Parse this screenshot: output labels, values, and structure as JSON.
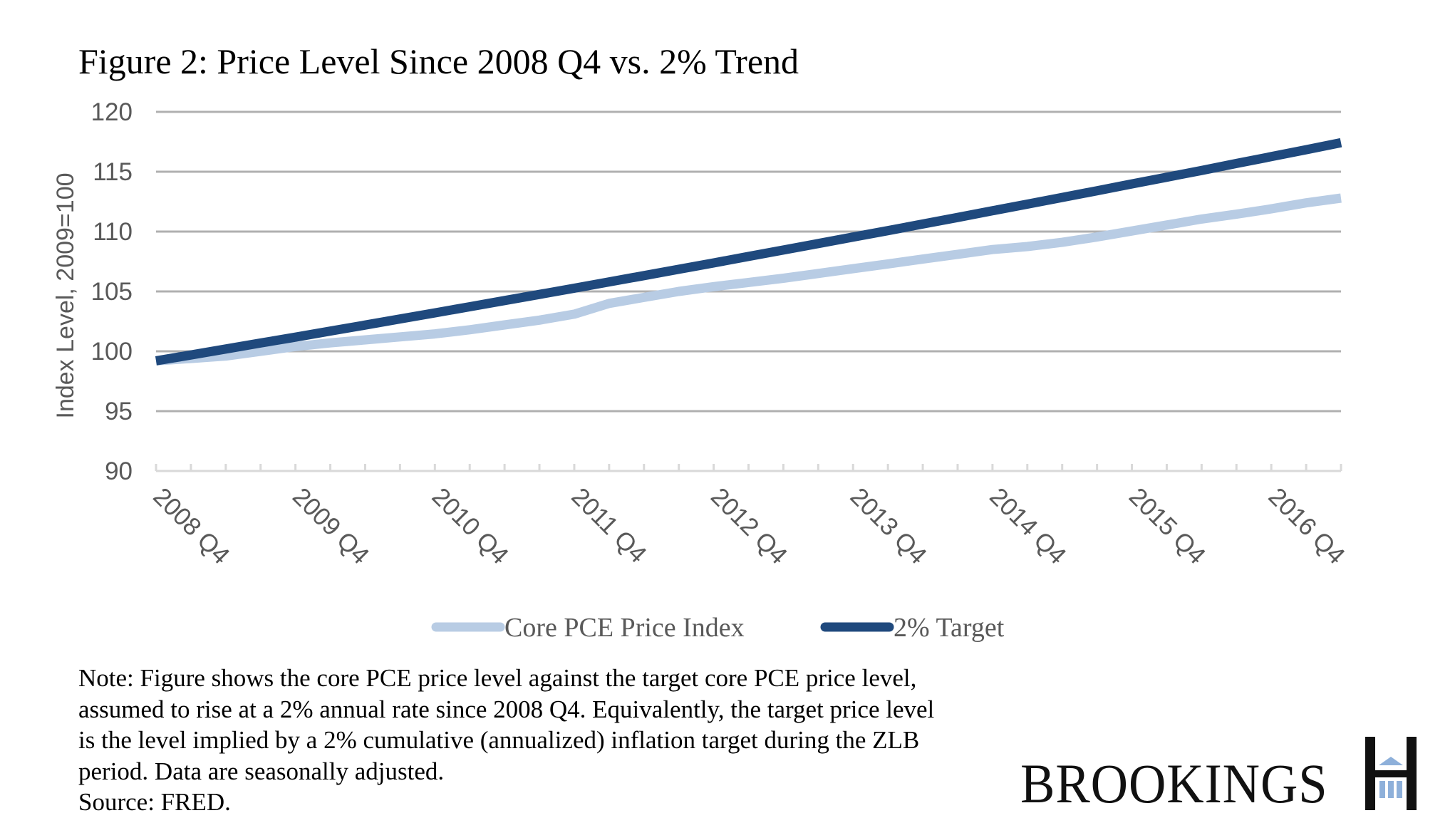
{
  "chart_data": {
    "type": "line",
    "title": "Figure 2: Price Level Since 2008 Q4 vs. 2% Trend",
    "xlabel": "",
    "ylabel": "Index Level, 2009=100",
    "ylim": [
      90,
      120
    ],
    "yticks": [
      90,
      95,
      100,
      105,
      110,
      115,
      120
    ],
    "ytick_labels": [
      "90",
      "95",
      "100",
      "105",
      "110",
      "115",
      "120"
    ],
    "grid": true,
    "legend_position": "bottom",
    "x_label_interval": 4,
    "xtick_labels": [
      "2008 Q4",
      "2009 Q4",
      "2010 Q4",
      "2011 Q4",
      "2012 Q4",
      "2013 Q4",
      "2014 Q4",
      "2015 Q4",
      "2016 Q4"
    ],
    "categories": [
      "2008 Q4",
      "2009 Q1",
      "2009 Q2",
      "2009 Q3",
      "2009 Q4",
      "2010 Q1",
      "2010 Q2",
      "2010 Q3",
      "2010 Q4",
      "2011 Q1",
      "2011 Q2",
      "2011 Q3",
      "2011 Q4",
      "2012 Q1",
      "2012 Q2",
      "2012 Q3",
      "2012 Q4",
      "2013 Q1",
      "2013 Q2",
      "2013 Q3",
      "2013 Q4",
      "2014 Q1",
      "2014 Q2",
      "2014 Q3",
      "2014 Q4",
      "2015 Q1",
      "2015 Q2",
      "2015 Q3",
      "2015 Q4",
      "2016 Q1",
      "2016 Q2",
      "2016 Q3",
      "2016 Q4",
      "2017 Q1",
      "2017 Q2"
    ],
    "series": [
      {
        "name": "Core PCE Price Index",
        "color": "#B8CCE4",
        "values": [
          99.2,
          99.4,
          99.6,
          100.0,
          100.4,
          100.7,
          100.95,
          101.2,
          101.45,
          101.8,
          102.2,
          102.6,
          103.1,
          104.0,
          104.5,
          105.0,
          105.4,
          105.75,
          106.1,
          106.5,
          106.9,
          107.3,
          107.7,
          108.1,
          108.5,
          108.75,
          109.1,
          109.55,
          110.05,
          110.55,
          111.05,
          111.45,
          111.9,
          112.4,
          112.8
        ]
      },
      {
        "name": "2% Target",
        "color": "#1F497D",
        "values": [
          99.2,
          99.69,
          100.19,
          100.69,
          101.18,
          101.69,
          102.19,
          102.7,
          103.21,
          103.72,
          104.24,
          104.75,
          105.27,
          105.8,
          106.32,
          106.85,
          107.38,
          107.92,
          108.46,
          109.0,
          109.54,
          110.08,
          110.63,
          111.18,
          111.74,
          112.29,
          112.85,
          113.41,
          113.98,
          114.54,
          115.11,
          115.69,
          116.26,
          116.84,
          117.42
        ]
      }
    ]
  },
  "note": {
    "lines": [
      "Note: Figure shows the core PCE price level against the target core PCE price level,",
      "assumed to rise at a 2% annual rate since 2008 Q4.  Equivalently, the target price level",
      "is the level implied by a 2% cumulative (annualized) inflation target during the ZLB",
      "period.  Data are seasonally adjusted.",
      "Source: FRED."
    ]
  },
  "logo": {
    "text": "BROOKINGS",
    "icon": "brookings-building-icon",
    "accent_color": "#8EB0DA"
  },
  "colors": {
    "gridline": "#B0B0B0",
    "axis": "#D9D9D9",
    "axis_text": "#595959"
  }
}
